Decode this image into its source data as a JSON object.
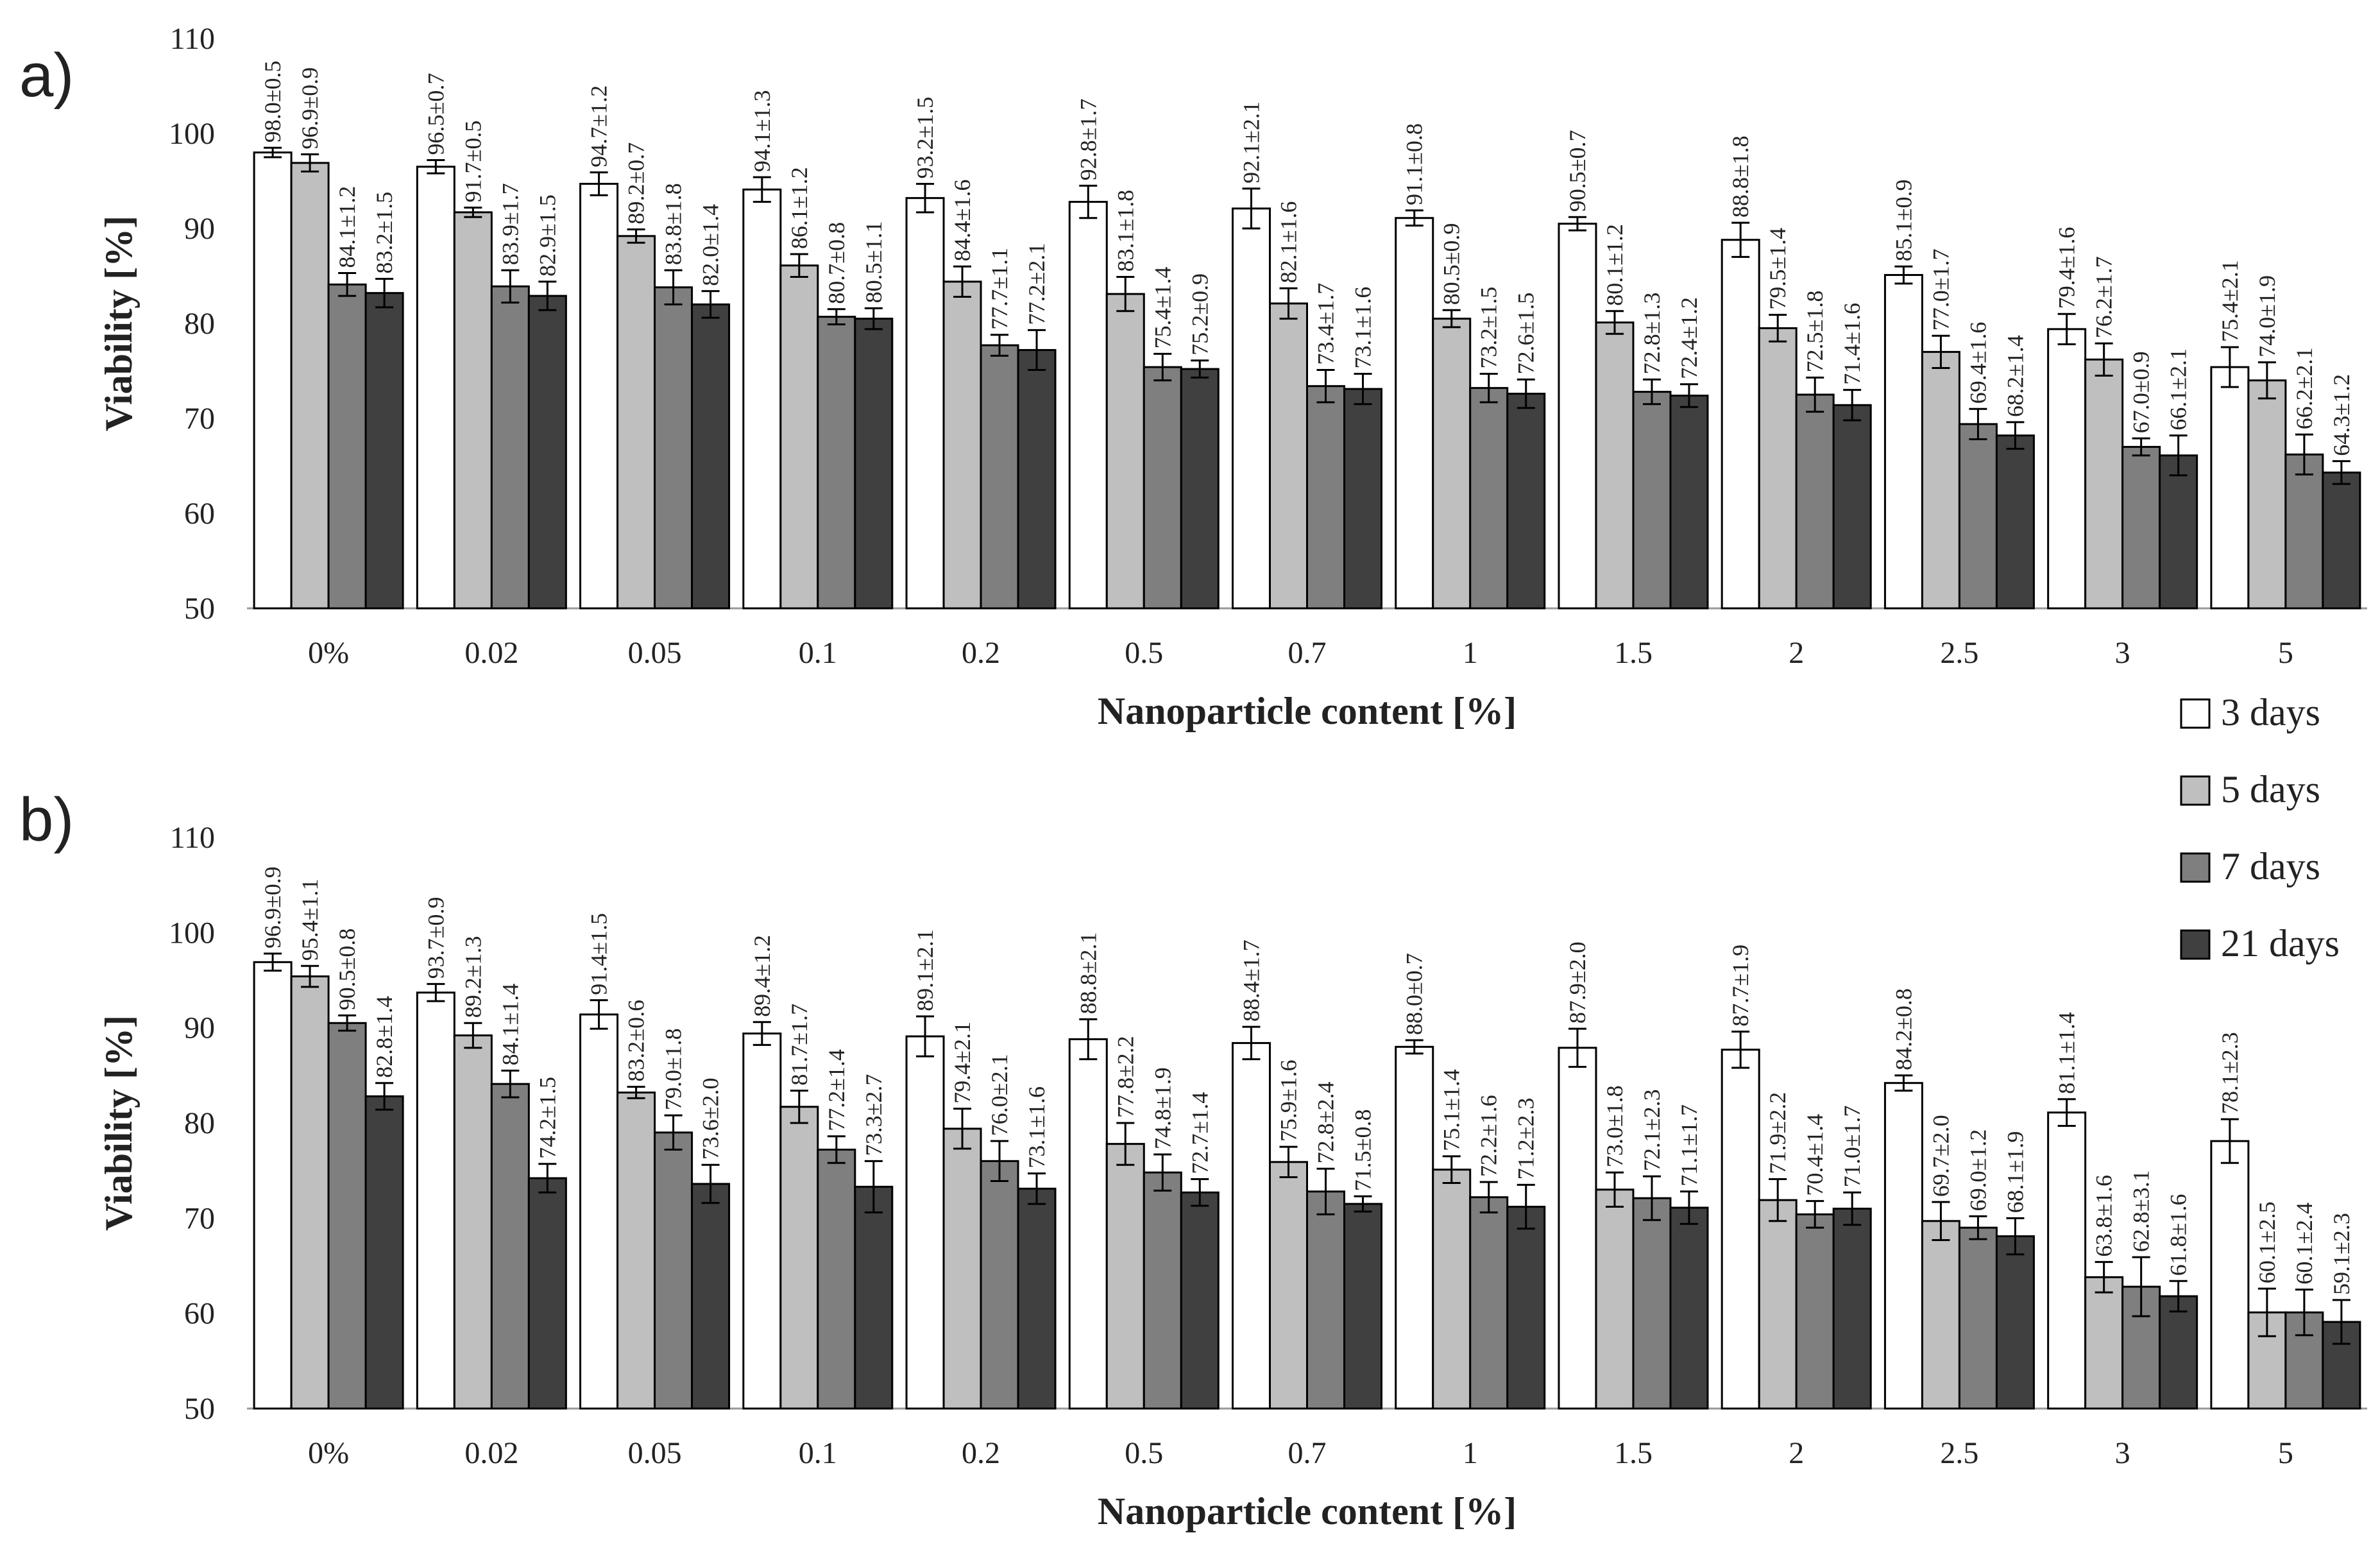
{
  "legend": [
    {
      "label": "3 days",
      "color": "#ffffff"
    },
    {
      "label": "5 days",
      "color": "#bfbfbf"
    },
    {
      "label": "7 days",
      "color": "#7f7f7f"
    },
    {
      "label": "21 days",
      "color": "#404040"
    }
  ],
  "chart_data": [
    {
      "panel": "a)",
      "type": "bar",
      "title": "",
      "xlabel": "Nanoparticle content [%]",
      "ylabel": "Viability [%]",
      "ylim": [
        50,
        110
      ],
      "yticks": [
        50,
        60,
        70,
        80,
        90,
        100,
        110
      ],
      "categories": [
        "0%",
        "0.02",
        "0.05",
        "0.1",
        "0.2",
        "0.5",
        "0.7",
        "1",
        "1.5",
        "2",
        "2.5",
        "3",
        "5"
      ],
      "series": [
        {
          "name": "3 days",
          "values": [
            98.0,
            96.5,
            94.7,
            94.1,
            93.2,
            92.8,
            92.1,
            91.1,
            90.5,
            88.8,
            85.1,
            79.4,
            75.4
          ],
          "errors": [
            0.5,
            0.7,
            1.2,
            1.3,
            1.5,
            1.7,
            2.1,
            0.8,
            0.7,
            1.8,
            0.9,
            1.6,
            2.1
          ],
          "labels": [
            "98.0±0.5",
            "96.5±0.7",
            "94.7±1.2",
            "94.1±1.3",
            "93.2±1.5",
            "92.8±1.7",
            "92.1±2.1",
            "91.1±0.8",
            "90.5±0.7",
            "88.8±1.8",
            "85.1±0.9",
            "79.4±1.6",
            "75.4±2.1"
          ]
        },
        {
          "name": "5 days",
          "values": [
            96.9,
            91.7,
            89.2,
            86.1,
            84.4,
            83.1,
            82.1,
            80.5,
            80.1,
            79.5,
            77.0,
            76.2,
            74.0
          ],
          "errors": [
            0.9,
            0.5,
            0.7,
            1.2,
            1.6,
            1.8,
            1.6,
            0.9,
            1.2,
            1.4,
            1.7,
            1.7,
            1.9
          ],
          "labels": [
            "96.9±0.9",
            "91.7±0.5",
            "89.2±0.7",
            "86.1±1.2",
            "84.4±1.6",
            "83.1±1.8",
            "82.1±1.6",
            "80.5±0.9",
            "80.1±1.2",
            "79.5±1.4",
            "77.0±1.7",
            "76.2±1.7",
            "74.0±1.9"
          ]
        },
        {
          "name": "7 days",
          "values": [
            84.1,
            83.9,
            83.8,
            80.7,
            77.7,
            75.4,
            73.4,
            73.2,
            72.8,
            72.5,
            69.4,
            67.0,
            66.2
          ],
          "errors": [
            1.2,
            1.7,
            1.8,
            0.8,
            1.1,
            1.4,
            1.7,
            1.5,
            1.3,
            1.8,
            1.6,
            0.9,
            2.1
          ],
          "labels": [
            "84.1±1.2",
            "83.9±1.7",
            "83.8±1.8",
            "80.7±0.8",
            "77.7±1.1",
            "75.4±1.4",
            "73.4±1.7",
            "73.2±1.5",
            "72.8±1.3",
            "72.5±1.8",
            "69.4±1.6",
            "67.0±0.9",
            "66.2±2.1"
          ]
        },
        {
          "name": "21 days",
          "values": [
            83.2,
            82.9,
            82.0,
            80.5,
            77.2,
            75.2,
            73.1,
            72.6,
            72.4,
            71.4,
            68.2,
            66.1,
            64.3
          ],
          "errors": [
            1.5,
            1.5,
            1.4,
            1.1,
            2.1,
            0.9,
            1.6,
            1.5,
            1.2,
            1.6,
            1.4,
            2.1,
            1.2
          ],
          "labels": [
            "83.2±1.5",
            "82.9±1.5",
            "82.0±1.4",
            "80.5±1.1",
            "77.2±2.1",
            "75.2±0.9",
            "73.1±1.6",
            "72.6±1.5",
            "72.4±1.2",
            "71.4±1.6",
            "68.2±1.4",
            "66.1±2.1",
            "64.3±1.2"
          ]
        }
      ]
    },
    {
      "panel": "b)",
      "type": "bar",
      "title": "",
      "xlabel": "Nanoparticle content [%]",
      "ylabel": "Viability [%]",
      "ylim": [
        50,
        110
      ],
      "yticks": [
        50,
        60,
        70,
        80,
        90,
        100,
        110
      ],
      "categories": [
        "0%",
        "0.02",
        "0.05",
        "0.1",
        "0.2",
        "0.5",
        "0.7",
        "1",
        "1.5",
        "2",
        "2.5",
        "3",
        "5"
      ],
      "series": [
        {
          "name": "3 days",
          "values": [
            96.9,
            93.7,
            91.4,
            89.4,
            89.1,
            88.8,
            88.4,
            88.0,
            87.9,
            87.7,
            84.2,
            81.1,
            78.1
          ],
          "errors": [
            0.9,
            0.9,
            1.5,
            1.2,
            2.1,
            2.1,
            1.7,
            0.7,
            2.0,
            1.9,
            0.8,
            1.4,
            2.3
          ],
          "labels": [
            "96.9±0.9",
            "93.7±0.9",
            "91.4±1.5",
            "89.4±1.2",
            "89.1±2.1",
            "88.8±2.1",
            "88.4±1.7",
            "88.0±0.7",
            "87.9±2.0",
            "87.7±1.9",
            "84.2±0.8",
            "81.1±1.4",
            "78.1±2.3"
          ]
        },
        {
          "name": "5 days",
          "values": [
            95.4,
            89.2,
            83.2,
            81.7,
            79.4,
            77.8,
            75.9,
            75.1,
            73.0,
            71.9,
            69.7,
            63.8,
            60.1
          ],
          "errors": [
            1.1,
            1.3,
            0.6,
            1.7,
            2.1,
            2.2,
            1.6,
            1.4,
            1.8,
            2.2,
            2.0,
            1.6,
            2.5
          ],
          "labels": [
            "95.4±1.1",
            "89.2±1.3",
            "83.2±0.6",
            "81.7±1.7",
            "79.4±2.1",
            "77.8±2.2",
            "75.9±1.6",
            "75.1±1.4",
            "73.0±1.8",
            "71.9±2.2",
            "69.7±2.0",
            "63.8±1.6",
            "60.1±2.5"
          ]
        },
        {
          "name": "7 days",
          "values": [
            90.5,
            84.1,
            79.0,
            77.2,
            76.0,
            74.8,
            72.8,
            72.2,
            72.1,
            70.4,
            69.0,
            62.8,
            60.1
          ],
          "errors": [
            0.8,
            1.4,
            1.8,
            1.4,
            2.1,
            1.9,
            2.4,
            1.6,
            2.3,
            1.4,
            1.2,
            3.1,
            2.4
          ],
          "labels": [
            "90.5±0.8",
            "84.1±1.4",
            "79.0±1.8",
            "77.2±1.4",
            "76.0±2.1",
            "74.8±1.9",
            "72.8±2.4",
            "72.2±1.6",
            "72.1±2.3",
            "70.4±1.4",
            "69.0±1.2",
            "62.8±3.1",
            "60.1±2.4"
          ]
        },
        {
          "name": "21 days",
          "values": [
            82.8,
            74.2,
            73.6,
            73.3,
            73.1,
            72.7,
            71.5,
            71.2,
            71.1,
            71.0,
            68.1,
            61.8,
            59.1
          ],
          "errors": [
            1.4,
            1.5,
            2.0,
            2.7,
            1.6,
            1.4,
            0.8,
            2.3,
            1.7,
            1.7,
            1.9,
            1.6,
            2.3
          ],
          "labels": [
            "82.8±1.4",
            "74.2±1.5",
            "73.6±2.0",
            "73.3±2.7",
            "73.1±1.6",
            "72.7±1.4",
            "71.5±0.8",
            "71.2±2.3",
            "71.1±1.7",
            "71.0±1.7",
            "68.1±1.9",
            "61.8±1.6",
            "59.1±2.3"
          ]
        }
      ]
    }
  ]
}
